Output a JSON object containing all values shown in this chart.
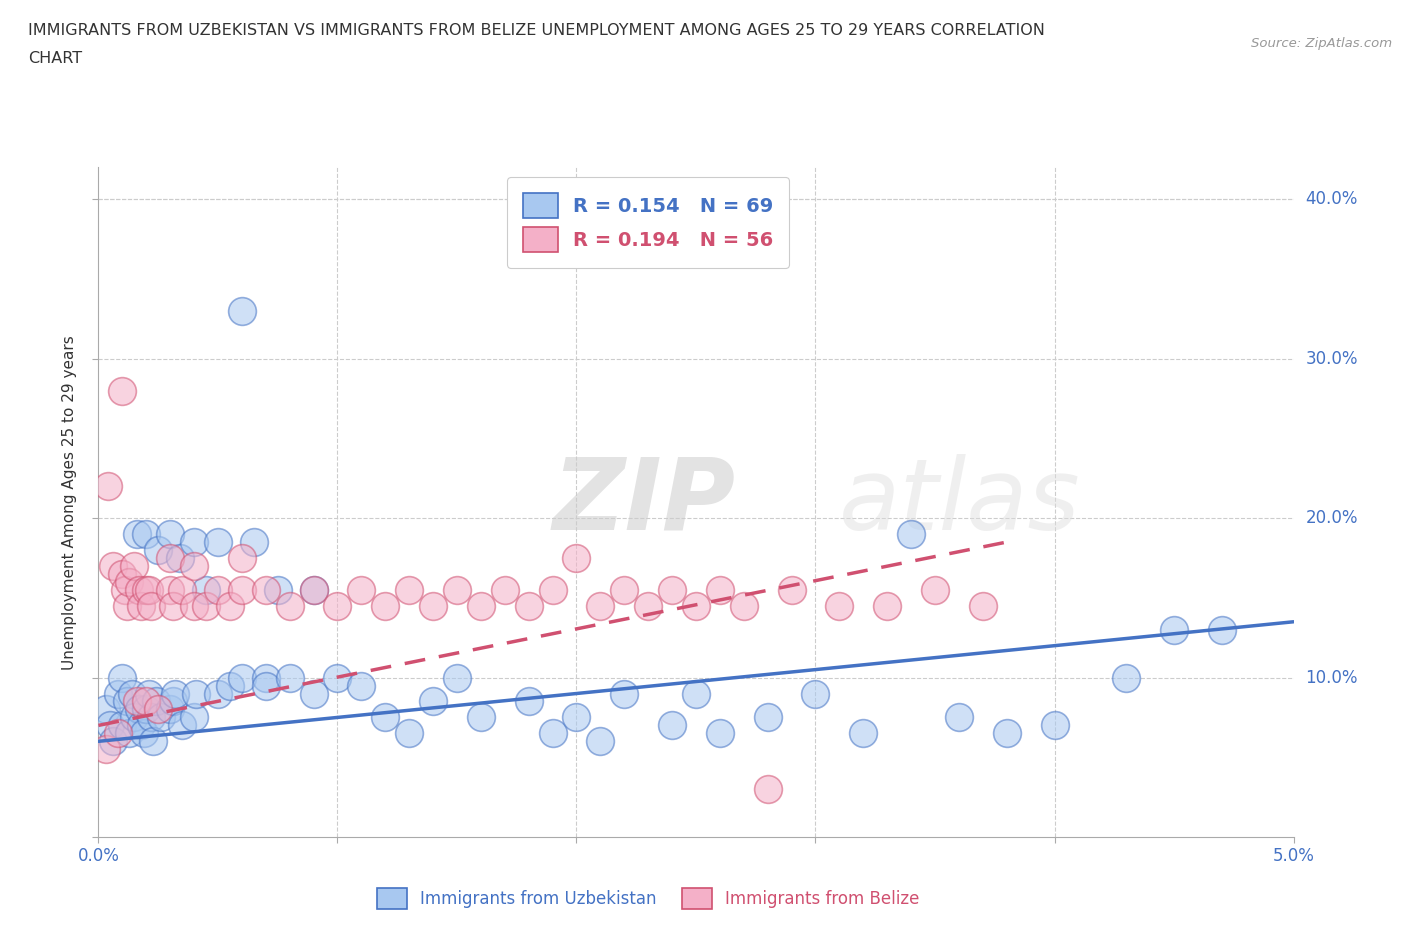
{
  "title_line1": "IMMIGRANTS FROM UZBEKISTAN VS IMMIGRANTS FROM BELIZE UNEMPLOYMENT AMONG AGES 25 TO 29 YEARS CORRELATION",
  "title_line2": "CHART",
  "source_text": "Source: ZipAtlas.com",
  "ylabel": "Unemployment Among Ages 25 to 29 years",
  "xlim": [
    0.0,
    0.05
  ],
  "ylim": [
    0.0,
    0.42
  ],
  "color_uzbekistan": "#A8C8F0",
  "color_belize": "#F4B0C8",
  "line_color_uzbekistan": "#4472C4",
  "line_color_belize": "#D05070",
  "R_uzbekistan": 0.154,
  "N_uzbekistan": 69,
  "R_belize": 0.194,
  "N_belize": 56,
  "watermark_zip": "ZIP",
  "watermark_atlas": "atlas",
  "uz_intercept": 0.055,
  "uz_slope": 1.8,
  "bz_intercept": 0.06,
  "bz_slope": 3.5,
  "uz_x": [
    0.0003,
    0.0005,
    0.0006,
    0.0008,
    0.001,
    0.001,
    0.0012,
    0.0013,
    0.0014,
    0.0015,
    0.0016,
    0.0017,
    0.0018,
    0.0019,
    0.002,
    0.002,
    0.0021,
    0.0022,
    0.0023,
    0.0024,
    0.0025,
    0.0026,
    0.003,
    0.003,
    0.0031,
    0.0032,
    0.0034,
    0.0035,
    0.004,
    0.004,
    0.0041,
    0.0045,
    0.005,
    0.005,
    0.0055,
    0.006,
    0.006,
    0.0065,
    0.007,
    0.007,
    0.0075,
    0.008,
    0.009,
    0.009,
    0.01,
    0.011,
    0.012,
    0.013,
    0.014,
    0.015,
    0.016,
    0.018,
    0.019,
    0.02,
    0.021,
    0.022,
    0.024,
    0.025,
    0.026,
    0.028,
    0.03,
    0.032,
    0.034,
    0.036,
    0.038,
    0.04,
    0.043,
    0.045,
    0.047
  ],
  "uz_y": [
    0.08,
    0.07,
    0.06,
    0.09,
    0.1,
    0.07,
    0.085,
    0.065,
    0.09,
    0.075,
    0.19,
    0.08,
    0.07,
    0.065,
    0.19,
    0.08,
    0.09,
    0.075,
    0.06,
    0.085,
    0.18,
    0.075,
    0.19,
    0.08,
    0.085,
    0.09,
    0.175,
    0.07,
    0.185,
    0.075,
    0.09,
    0.155,
    0.185,
    0.09,
    0.095,
    0.33,
    0.1,
    0.185,
    0.1,
    0.095,
    0.155,
    0.1,
    0.155,
    0.09,
    0.1,
    0.095,
    0.075,
    0.065,
    0.085,
    0.1,
    0.075,
    0.085,
    0.065,
    0.075,
    0.06,
    0.09,
    0.07,
    0.09,
    0.065,
    0.075,
    0.09,
    0.065,
    0.19,
    0.075,
    0.065,
    0.07,
    0.1,
    0.13,
    0.13
  ],
  "bz_x": [
    0.0003,
    0.0004,
    0.0006,
    0.0008,
    0.001,
    0.001,
    0.0011,
    0.0012,
    0.0013,
    0.0015,
    0.0016,
    0.0017,
    0.0018,
    0.002,
    0.002,
    0.0021,
    0.0022,
    0.0025,
    0.003,
    0.003,
    0.0031,
    0.0035,
    0.004,
    0.004,
    0.0045,
    0.005,
    0.0055,
    0.006,
    0.006,
    0.007,
    0.008,
    0.009,
    0.01,
    0.011,
    0.012,
    0.013,
    0.014,
    0.015,
    0.016,
    0.017,
    0.018,
    0.019,
    0.02,
    0.021,
    0.022,
    0.023,
    0.024,
    0.025,
    0.026,
    0.027,
    0.028,
    0.029,
    0.031,
    0.033,
    0.035,
    0.037
  ],
  "bz_y": [
    0.055,
    0.22,
    0.17,
    0.065,
    0.165,
    0.28,
    0.155,
    0.145,
    0.16,
    0.17,
    0.085,
    0.155,
    0.145,
    0.155,
    0.085,
    0.155,
    0.145,
    0.08,
    0.155,
    0.175,
    0.145,
    0.155,
    0.145,
    0.17,
    0.145,
    0.155,
    0.145,
    0.155,
    0.175,
    0.155,
    0.145,
    0.155,
    0.145,
    0.155,
    0.145,
    0.155,
    0.145,
    0.155,
    0.145,
    0.155,
    0.145,
    0.155,
    0.175,
    0.145,
    0.155,
    0.145,
    0.155,
    0.145,
    0.155,
    0.145,
    0.03,
    0.155,
    0.145,
    0.145,
    0.155,
    0.145
  ]
}
